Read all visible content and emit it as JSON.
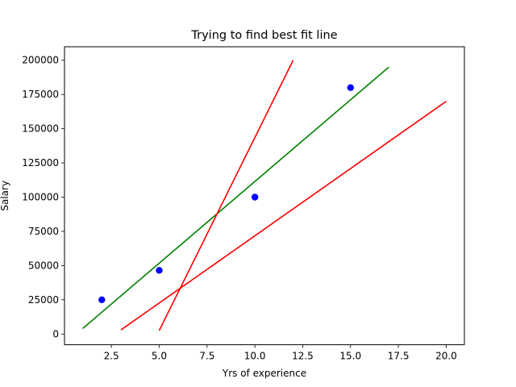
{
  "chart_data": {
    "type": "scatter",
    "title": "Trying to find best fit line",
    "xlabel": "Yrs of experience",
    "ylabel": "Salary",
    "xlim": [
      0.05,
      20.95
    ],
    "ylim": [
      -7850,
      209850
    ],
    "xticks": [
      2.5,
      5.0,
      7.5,
      10.0,
      12.5,
      15.0,
      17.5,
      20.0
    ],
    "xtick_labels": [
      "2.5",
      "5.0",
      "7.5",
      "10.0",
      "12.5",
      "15.0",
      "17.5",
      "20.0"
    ],
    "yticks": [
      0,
      25000,
      50000,
      75000,
      100000,
      125000,
      150000,
      175000,
      200000
    ],
    "ytick_labels": [
      "0",
      "25000",
      "50000",
      "75000",
      "100000",
      "125000",
      "150000",
      "175000",
      "200000"
    ],
    "grid": false,
    "points": {
      "color": "#0000ff",
      "x": [
        2,
        5,
        10,
        15
      ],
      "y": [
        25000,
        46500,
        100000,
        180000
      ]
    },
    "lines": [
      {
        "color": "#008000",
        "x": [
          1,
          17
        ],
        "y": [
          4000,
          195000
        ]
      },
      {
        "color": "#ff0000",
        "x": [
          5,
          12
        ],
        "y": [
          2500,
          200000
        ]
      },
      {
        "color": "#ff0000",
        "x": [
          3,
          20
        ],
        "y": [
          3000,
          170000
        ]
      }
    ]
  }
}
